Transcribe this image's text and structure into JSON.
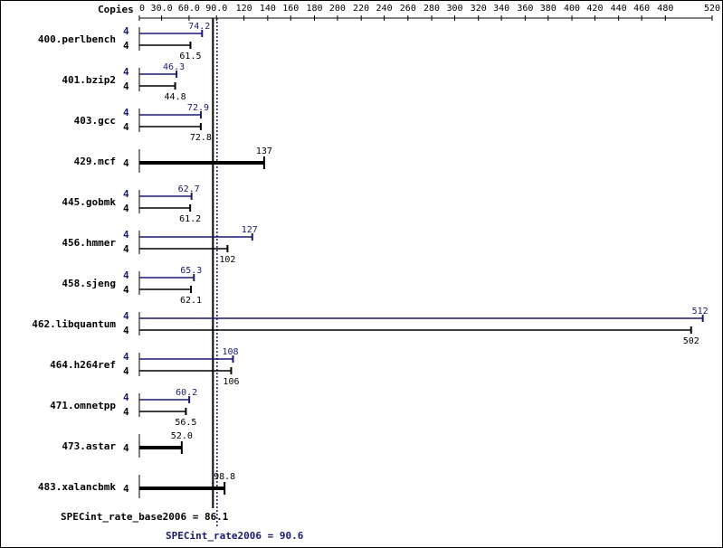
{
  "chart_data": {
    "type": "bar",
    "orientation": "horizontal",
    "copies_header": "Copies",
    "xlim": [
      0,
      520
    ],
    "ticks": [
      "0",
      "30.0",
      "60.0",
      "90.0",
      "120",
      "140",
      "160",
      "180",
      "200",
      "220",
      "240",
      "260",
      "280",
      "300",
      "320",
      "340",
      "360",
      "380",
      "400",
      "420",
      "440",
      "460",
      "480",
      "520"
    ],
    "tick_values": [
      0,
      30,
      60,
      90,
      120,
      140,
      160,
      180,
      200,
      220,
      240,
      260,
      280,
      300,
      320,
      340,
      360,
      380,
      400,
      420,
      440,
      460,
      480,
      520
    ],
    "colors": {
      "peak": "#191970",
      "base": "#000000"
    },
    "benchmarks": [
      {
        "name": "400.perlbench",
        "peak_copies": "4",
        "peak": 74.2,
        "peak_label": "74.2",
        "base_copies": "4",
        "base": 61.5,
        "base_label": "61.5"
      },
      {
        "name": "401.bzip2",
        "peak_copies": "4",
        "peak": 46.3,
        "peak_label": "46.3",
        "base_copies": "4",
        "base": 44.8,
        "base_label": "44.8"
      },
      {
        "name": "403.gcc",
        "peak_copies": "4",
        "peak": 72.9,
        "peak_label": "72.9",
        "base_copies": "4",
        "base": 72.8,
        "base_label": "72.8"
      },
      {
        "name": "429.mcf",
        "single": true,
        "base_copies": "4",
        "base": 137,
        "base_label": "137"
      },
      {
        "name": "445.gobmk",
        "peak_copies": "4",
        "peak": 62.7,
        "peak_label": "62.7",
        "base_copies": "4",
        "base": 61.2,
        "base_label": "61.2"
      },
      {
        "name": "456.hmmer",
        "peak_copies": "4",
        "peak": 127,
        "peak_label": "127",
        "base_copies": "4",
        "base": 102,
        "base_label": "102"
      },
      {
        "name": "458.sjeng",
        "peak_copies": "4",
        "peak": 65.3,
        "peak_label": "65.3",
        "base_copies": "4",
        "base": 62.1,
        "base_label": "62.1"
      },
      {
        "name": "462.libquantum",
        "peak_copies": "4",
        "peak": 512,
        "peak_label": "512",
        "base_copies": "4",
        "base": 502,
        "base_label": "502"
      },
      {
        "name": "464.h264ref",
        "peak_copies": "4",
        "peak": 108,
        "peak_label": "108",
        "base_copies": "4",
        "base": 106,
        "base_label": "106"
      },
      {
        "name": "471.omnetpp",
        "peak_copies": "4",
        "peak": 60.2,
        "peak_label": "60.2",
        "base_copies": "4",
        "base": 56.5,
        "base_label": "56.5"
      },
      {
        "name": "473.astar",
        "single": true,
        "base_copies": "4",
        "base": 52.0,
        "base_label": "52.0"
      },
      {
        "name": "483.xalancbmk",
        "single": true,
        "base_copies": "4",
        "base": 98.8,
        "base_label": "98.8"
      }
    ],
    "summary": {
      "base_label": "SPECint_rate_base2006 = 86.1",
      "base_value": 86.1,
      "peak_label": "SPECint_rate2006 = 90.6",
      "peak_value": 90.6
    }
  }
}
